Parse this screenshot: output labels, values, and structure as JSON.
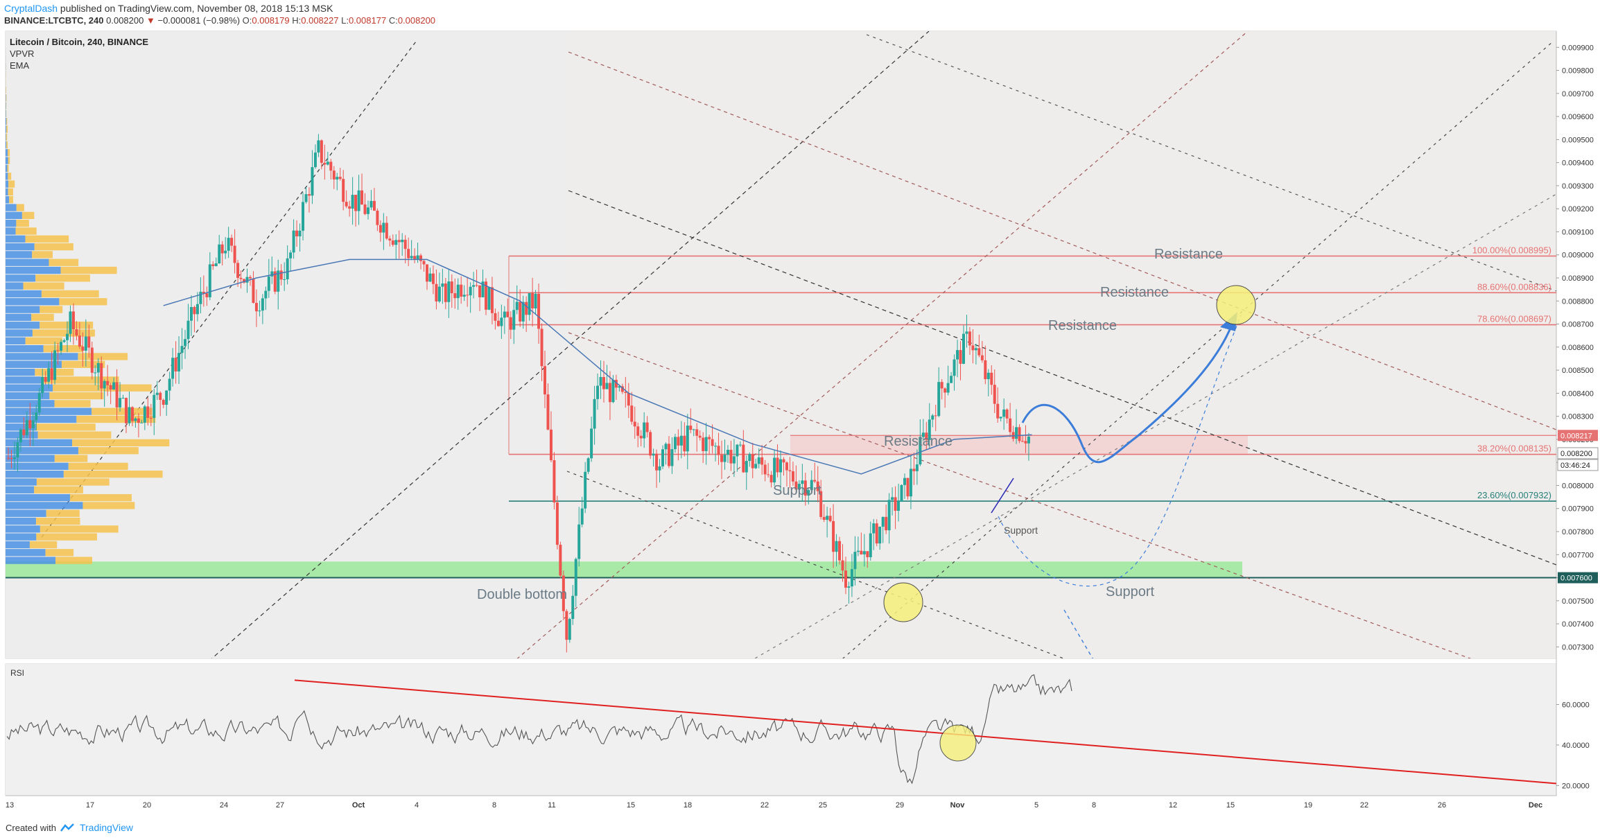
{
  "header": {
    "author": "CryptalDash",
    "published": "published on TradingView.com, November 08, 2018 15:13 MSK",
    "symbol": "BINANCE:LTCBTC, 240",
    "price": "0.008200",
    "change_arrow": "▼",
    "change": "−0.000081 (−0.98%)",
    "o_label": "O:",
    "o": "0.008179",
    "h_label": "H:",
    "h": "0.008227",
    "l_label": "L:",
    "l": "0.008177",
    "c_label": "C:",
    "c": "0.008200"
  },
  "legend": {
    "title": "Litecoin / Bitcoin, 240, BINANCE",
    "items": [
      "VPVR",
      "EMA"
    ]
  },
  "price_axis": {
    "ticks": [
      "0.009900",
      "0.009800",
      "0.009700",
      "0.009600",
      "0.009500",
      "0.009400",
      "0.009300",
      "0.009200",
      "0.009100",
      "0.009000",
      "0.008900",
      "0.008800",
      "0.008700",
      "0.008600",
      "0.008500",
      "0.008400",
      "0.008300",
      "0.008200",
      "0.008100",
      "0.008000",
      "0.007900",
      "0.007800",
      "0.007700",
      "0.007600",
      "0.007500",
      "0.007400",
      "0.007300"
    ],
    "ylim": [
      0.00725,
      0.00997
    ],
    "badges": [
      {
        "value": 0.008217,
        "text": "0.008217",
        "bg": "#e57373",
        "fg": "#ffffff"
      },
      {
        "value": 0.0082,
        "text": "0.008200",
        "bg": "#ffffff",
        "fg": "#222222"
      },
      {
        "value": 0.0082,
        "text": "03:46:24",
        "bg": "#ffffff",
        "fg": "#222222"
      },
      {
        "value": 0.0076,
        "text": "0.007600",
        "bg": "#1f5f5b",
        "fg": "#ffffff"
      }
    ]
  },
  "time_axis": {
    "labels": [
      "13",
      "17",
      "20",
      "24",
      "27",
      "Oct",
      "4",
      "8",
      "11",
      "15",
      "18",
      "22",
      "25",
      "29",
      "Nov",
      "5",
      "8",
      "12",
      "15",
      "19",
      "22",
      "26",
      "Dec"
    ]
  },
  "fib_levels": [
    {
      "label": "100.00%(0.008995)",
      "value": 0.008995
    },
    {
      "label": "88.60%(0.008836)",
      "value": 0.008836
    },
    {
      "label": "78.60%(0.008697)",
      "value": 0.008697
    },
    {
      "label": "38.20%(0.008135)",
      "value": 0.008135
    },
    {
      "label": "23.60%(0.007932)",
      "value": 0.007932
    }
  ],
  "annotations": {
    "resistance_1": "Resistance",
    "resistance_2": "Resistance",
    "resistance_3": "Resistance",
    "resistance_4": "Resistance",
    "support_1": "Support",
    "support_2": "Support",
    "support_3": "Support",
    "double_bottom": "Double bottom"
  },
  "rsi": {
    "label": "RSI",
    "ticks": [
      "60.0000",
      "40.0000",
      "20.0000"
    ],
    "ylim": [
      15,
      80
    ]
  },
  "footer": {
    "created_with": "Created with",
    "brand": "TradingView"
  },
  "colors": {
    "bull": "#26a69a",
    "bear": "#ef5350",
    "ema": "#4a78b5",
    "fib": "#e57373",
    "fib_teal": "#26807a",
    "support_zone": "#9be89b",
    "projection": "#3b7dd8",
    "rsi_line": "#555555",
    "rsi_trend": "#e02020",
    "highlight_circle": "#f5f07a",
    "vol_up": "#4a90e2",
    "vol_down": "#f5c24c"
  },
  "chart_data": {
    "type": "candlestick",
    "title": "Litecoin / Bitcoin, 240, BINANCE",
    "x_range": [
      "Sep 13",
      "Dec"
    ],
    "ylim": [
      0.00725,
      0.00997
    ],
    "close_path": [
      [
        0.0,
        0.00812
      ],
      [
        0.02,
        0.00838
      ],
      [
        0.04,
        0.0087
      ],
      [
        0.06,
        0.00848
      ],
      [
        0.08,
        0.00828
      ],
      [
        0.1,
        0.0084
      ],
      [
        0.12,
        0.00875
      ],
      [
        0.14,
        0.00905
      ],
      [
        0.16,
        0.0088
      ],
      [
        0.18,
        0.00895
      ],
      [
        0.2,
        0.00945
      ],
      [
        0.22,
        0.00925
      ],
      [
        0.24,
        0.00915
      ],
      [
        0.26,
        0.009
      ],
      [
        0.28,
        0.00882
      ],
      [
        0.3,
        0.0089
      ],
      [
        0.32,
        0.0087
      ],
      [
        0.34,
        0.0088
      ],
      [
        0.36,
        0.00735
      ],
      [
        0.38,
        0.00845
      ],
      [
        0.4,
        0.00835
      ],
      [
        0.42,
        0.0081
      ],
      [
        0.44,
        0.00822
      ],
      [
        0.46,
        0.00815
      ],
      [
        0.48,
        0.0081
      ],
      [
        0.5,
        0.00805
      ],
      [
        0.52,
        0.008
      ],
      [
        0.54,
        0.0076
      ],
      [
        0.56,
        0.0078
      ],
      [
        0.58,
        0.008
      ],
      [
        0.6,
        0.0084
      ],
      [
        0.62,
        0.00865
      ],
      [
        0.64,
        0.0083
      ],
      [
        0.66,
        0.0082
      ]
    ],
    "ema_path": [
      [
        0.1,
        0.00878
      ],
      [
        0.16,
        0.0089
      ],
      [
        0.22,
        0.00898
      ],
      [
        0.27,
        0.00898
      ],
      [
        0.33,
        0.0088
      ],
      [
        0.4,
        0.0084
      ],
      [
        0.48,
        0.00818
      ],
      [
        0.55,
        0.00805
      ],
      [
        0.61,
        0.0082
      ],
      [
        0.66,
        0.00822
      ]
    ]
  }
}
